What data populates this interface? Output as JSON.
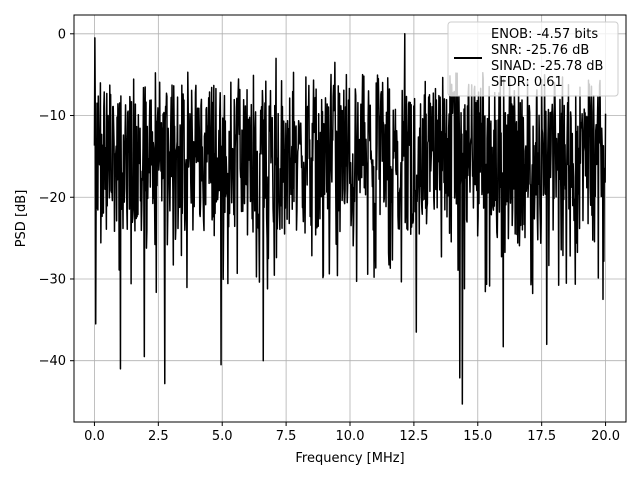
{
  "chart_data": {
    "type": "line",
    "title": "",
    "xlabel": "Frequency [MHz]",
    "ylabel": "PSD [dB]",
    "xlim": [
      -0.8,
      20.8
    ],
    "ylim": [
      -47.5,
      2.3
    ],
    "xticks": [
      0.0,
      2.5,
      5.0,
      7.5,
      10.0,
      12.5,
      15.0,
      17.5,
      20.0
    ],
    "xtick_labels": [
      "0.0",
      "2.5",
      "5.0",
      "7.5",
      "10.0",
      "12.5",
      "15.0",
      "17.5",
      "20.0"
    ],
    "yticks": [
      0,
      -10,
      -20,
      -30,
      -40
    ],
    "ytick_labels": [
      "0",
      "−10",
      "−20",
      "−30",
      "−40"
    ],
    "grid": true,
    "legend_position": "top-right",
    "series_color": "#000000",
    "legend": {
      "entries": [
        "ENOB: -4.57 bits",
        "SNR: -25.76 dB",
        "SINAD: -25.78 dB",
        "SFDR: 0.61"
      ]
    },
    "series": [
      {
        "x_range": [
          0.0,
          20.0
        ],
        "points": 1200,
        "peaks": [
          [
            0.02,
            -0.5
          ],
          [
            0.05,
            -3.5
          ],
          [
            0.1,
            -8.5
          ],
          [
            12.15,
            0.0
          ],
          [
            7.1,
            -3.0
          ],
          [
            9.4,
            -3.5
          ]
        ],
        "troughs": [
          [
            0.05,
            -35.5
          ],
          [
            1.02,
            -41.0
          ],
          [
            1.95,
            -39.5
          ],
          [
            2.75,
            -42.8
          ],
          [
            4.95,
            -40.5
          ],
          [
            6.6,
            -40.0
          ],
          [
            14.4,
            -45.3
          ],
          [
            14.3,
            -42.1
          ],
          [
            16.0,
            -38.3
          ],
          [
            12.6,
            -36.5
          ],
          [
            17.7,
            -38.0
          ],
          [
            19.9,
            -32.5
          ]
        ]
      }
    ]
  }
}
